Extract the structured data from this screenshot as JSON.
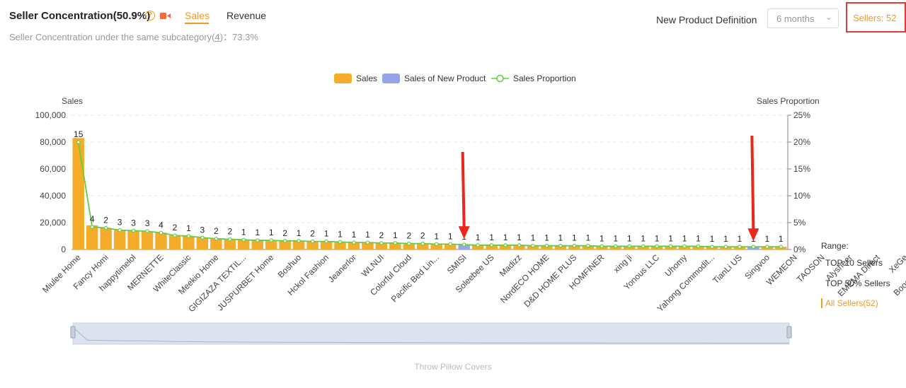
{
  "header": {
    "title": "Seller Concentration(50.9%)",
    "tabs": {
      "sales": "Sales",
      "revenue": "Revenue"
    },
    "subline_prefix": "Seller Concentration under the same subcategory(",
    "subline_link": "4",
    "subline_suffix": ")：73.3%",
    "new_product_definition_label": "New Product Definition",
    "new_product_definition_value": "6 months",
    "sellers_count": "Sellers: 52"
  },
  "range": {
    "label": "Range:",
    "options": [
      "TOP 10 Sellers",
      "TOP 50% Sellers",
      "All Sellers(52)"
    ],
    "active": "All Sellers(52)"
  },
  "footer": {
    "subcategory": "Throw Pillow Covers"
  },
  "colors": {
    "sales": "#f5ac2a",
    "new_product": "#98a4ea",
    "proportion": "#66cc44",
    "accent": "#f39a1f",
    "annotation": "#e8281e"
  },
  "chart_data": {
    "type": "bar",
    "legend": [
      "Sales",
      "Sales of New Product",
      "Sales Proportion"
    ],
    "legend_placement": "top-center",
    "ylabel_left": "Sales",
    "ylabel_right": "Sales Proportion",
    "y_ticks": [
      "0",
      "20,000",
      "40,000",
      "60,000",
      "80,000",
      "100,000"
    ],
    "y2_ticks": [
      "0%",
      "5%",
      "10%",
      "15%",
      "20%",
      "25%"
    ],
    "ylim": [
      0,
      100000
    ],
    "y2lim": [
      0,
      25
    ],
    "grid": true,
    "shown_x_labels": [
      "Miulee Home",
      "Fancy Homi",
      "happytimelol",
      "MERNETTE",
      "WhiteClassic",
      "Meekio Home",
      "GIGIZAZA TEXTIL...",
      "JUSPURBET Home",
      "Boshuo",
      "Hckol Fashion",
      "Jeanerlor",
      "WLNUI",
      "Colorful Cloud",
      "Pacific Bed Lin...",
      "SMISI",
      "Soleebee US",
      "Madizz",
      "NordECO HOME",
      "D&D HOME PLUS",
      "HOMFINER",
      "xing ji",
      "Yonous LLC",
      "Uhomy",
      "Yahong Commodit...",
      "TianLi US",
      "Singvoo",
      "WEMEON",
      "TAOSON",
      "Alysheer",
      "EMEMA Direct",
      "XeGe",
      "Booque Valley"
    ],
    "label_every": 2,
    "values": [
      83000,
      18000,
      16000,
      14500,
      14000,
      13500,
      12500,
      10500,
      10000,
      9000,
      8000,
      7500,
      7000,
      6800,
      6600,
      6400,
      6200,
      6000,
      5800,
      5500,
      5200,
      5000,
      4800,
      4600,
      4400,
      4200,
      4000,
      3800,
      3600,
      3300,
      3200,
      3100,
      3000,
      2900,
      2800,
      2700,
      2600,
      2600,
      2500,
      2500,
      2400,
      2400,
      2300,
      2300,
      2200,
      2200,
      2100,
      2100,
      2000,
      2000,
      2000,
      2000
    ],
    "new_product_indices": [
      28,
      49
    ],
    "proportion": [
      20.0,
      4.2,
      4.0,
      3.6,
      3.5,
      3.4,
      3.1,
      2.6,
      2.5,
      2.2,
      2.0,
      1.9,
      1.8,
      1.7,
      1.7,
      1.6,
      1.6,
      1.5,
      1.5,
      1.4,
      1.3,
      1.3,
      1.2,
      1.2,
      1.1,
      1.1,
      1.0,
      1.0,
      0.9,
      0.8,
      0.8,
      0.8,
      0.8,
      0.7,
      0.7,
      0.7,
      0.7,
      0.7,
      0.6,
      0.6,
      0.6,
      0.6,
      0.6,
      0.6,
      0.6,
      0.6,
      0.5,
      0.5,
      0.5,
      0.5,
      0.5,
      0.5
    ],
    "point_labels": [
      "15",
      "4",
      "2",
      "3",
      "3",
      "3",
      "4",
      "2",
      "1",
      "3",
      "2",
      "2",
      "1",
      "1",
      "1",
      "2",
      "1",
      "2",
      "1",
      "1",
      "1",
      "1",
      "2",
      "1",
      "2",
      "2",
      "1",
      "1",
      "1",
      "1",
      "1",
      "1",
      "1",
      "1",
      "1",
      "1",
      "1",
      "1",
      "1",
      "1",
      "1",
      "1",
      "1",
      "1",
      "1",
      "1",
      "1",
      "1",
      "1",
      "1",
      "1",
      "1"
    ]
  }
}
